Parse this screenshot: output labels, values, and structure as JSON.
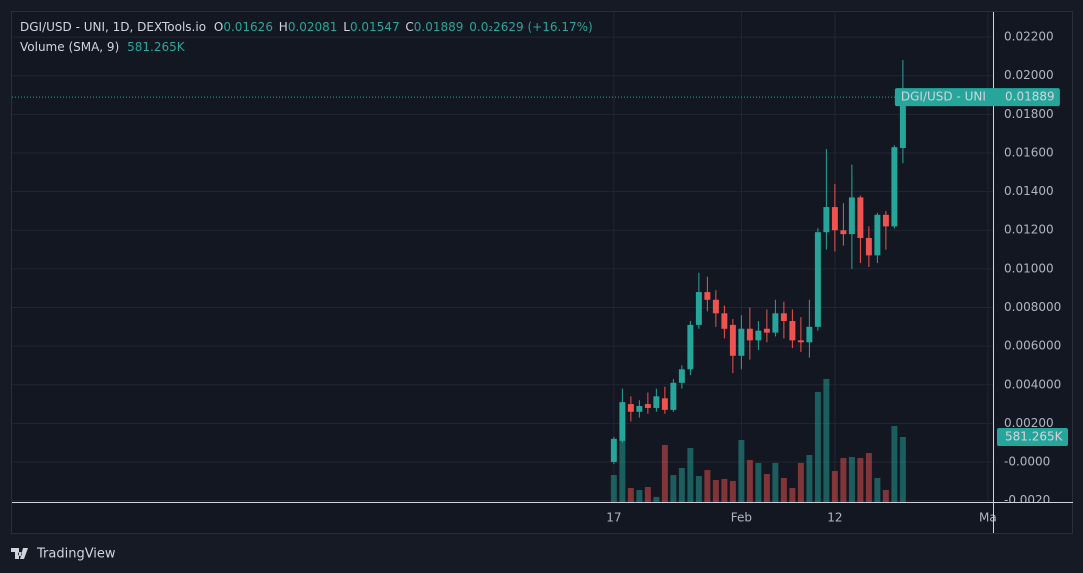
{
  "chart_data": {
    "type": "candlestick",
    "symbol_title": "DGI/USD - UNI, 1D, DEXTools.io",
    "ohlc_letters": [
      "O",
      "H",
      "L",
      "C"
    ],
    "change": "0.0₂2629 (+16.17%)",
    "volume_title": "Volume (SMA, 9)",
    "last_volume_label": "581.265K",
    "price_tag_name": "DGI/USD - UNI",
    "logo": "TradingView",
    "up_color": "#26a69a",
    "down_color": "#ef5350",
    "x": [
      0,
      1,
      2,
      3,
      4,
      5,
      6,
      7,
      8,
      9,
      10,
      11,
      12,
      13,
      14,
      15,
      16,
      17,
      18,
      19,
      20,
      21,
      22,
      23,
      24,
      25,
      26,
      27,
      28,
      29,
      30,
      31,
      32,
      33,
      34
    ],
    "open": [
      0.0,
      0.0011,
      0.003,
      0.0026,
      0.003,
      0.0028,
      0.0033,
      0.0027,
      0.0041,
      0.0048,
      0.0071,
      0.0088,
      0.0084,
      0.0077,
      0.0071,
      0.0055,
      0.0069,
      0.0063,
      0.0069,
      0.0067,
      0.0077,
      0.0073,
      0.0063,
      0.0062,
      0.007,
      0.0119,
      0.0132,
      0.012,
      0.0118,
      0.0137,
      0.0116,
      0.0107,
      0.0128,
      0.0122,
      0.01626
    ],
    "high": [
      0.0013,
      0.0038,
      0.0034,
      0.0032,
      0.0036,
      0.0038,
      0.0039,
      0.0043,
      0.005,
      0.0073,
      0.0098,
      0.0096,
      0.0089,
      0.0081,
      0.0074,
      0.0076,
      0.008,
      0.0073,
      0.0079,
      0.0084,
      0.0083,
      0.0079,
      0.0075,
      0.0084,
      0.0121,
      0.0162,
      0.0144,
      0.0134,
      0.0154,
      0.0138,
      0.0122,
      0.0129,
      0.013,
      0.0164,
      0.02081
    ],
    "low": [
      -0.0001,
      0.001,
      0.0021,
      0.0023,
      0.0025,
      0.0026,
      0.0025,
      0.0026,
      0.0038,
      0.0045,
      0.0069,
      0.0078,
      0.007,
      0.0064,
      0.0046,
      0.0048,
      0.0053,
      0.0058,
      0.0062,
      0.0065,
      0.0064,
      0.0059,
      0.0057,
      0.0054,
      0.0068,
      0.011,
      0.0109,
      0.0112,
      0.01,
      0.0103,
      0.0101,
      0.0103,
      0.011,
      0.0121,
      0.01547
    ],
    "close": [
      0.0012,
      0.0031,
      0.0026,
      0.0029,
      0.0028,
      0.0034,
      0.0027,
      0.0041,
      0.0048,
      0.0071,
      0.0088,
      0.0084,
      0.0077,
      0.0069,
      0.0055,
      0.0069,
      0.0063,
      0.0068,
      0.0067,
      0.0077,
      0.0073,
      0.0063,
      0.0062,
      0.007,
      0.0119,
      0.0132,
      0.012,
      0.0118,
      0.0137,
      0.0116,
      0.0107,
      0.0128,
      0.0122,
      0.0163,
      0.01889
    ],
    "volume": [
      241000,
      554000,
      125000,
      107000,
      134000,
      45000,
      510000,
      241000,
      304000,
      483000,
      233000,
      286000,
      197000,
      206000,
      188000,
      554000,
      376000,
      349000,
      250000,
      349000,
      215000,
      125000,
      349000,
      420000,
      984000,
      1100000,
      277000,
      393000,
      402000,
      393000,
      438000,
      215000,
      107000,
      680000,
      581265
    ],
    "volume_ylim": [
      0,
      4380000
    ],
    "xlim": [
      -70.8,
      44.6
    ],
    "xticks": [
      {
        "value": 0,
        "label": "17"
      },
      {
        "value": 15,
        "label": "Feb"
      },
      {
        "value": 26,
        "label": "12"
      },
      {
        "value": 44,
        "label": "Ma"
      }
    ],
    "ylim": [
      -0.00207,
      0.0233
    ],
    "yticks": [
      {
        "value": -0.002,
        "label": "-0.0020"
      },
      {
        "value": 0,
        "label": "-0.0000"
      },
      {
        "value": 0.002,
        "label": "0.00200"
      },
      {
        "value": 0.004,
        "label": "0.004000"
      },
      {
        "value": 0.006,
        "label": "0.006000"
      },
      {
        "value": 0.008,
        "label": "0.008000"
      },
      {
        "value": 0.01,
        "label": "0.01000"
      },
      {
        "value": 0.012,
        "label": "0.01200"
      },
      {
        "value": 0.014,
        "label": "0.01400"
      },
      {
        "value": 0.016,
        "label": "0.01600"
      },
      {
        "value": 0.018,
        "label": "0.01800"
      },
      {
        "value": 0.02,
        "label": "0.02000"
      },
      {
        "value": 0.022,
        "label": "0.02200"
      }
    ],
    "grid": true
  }
}
